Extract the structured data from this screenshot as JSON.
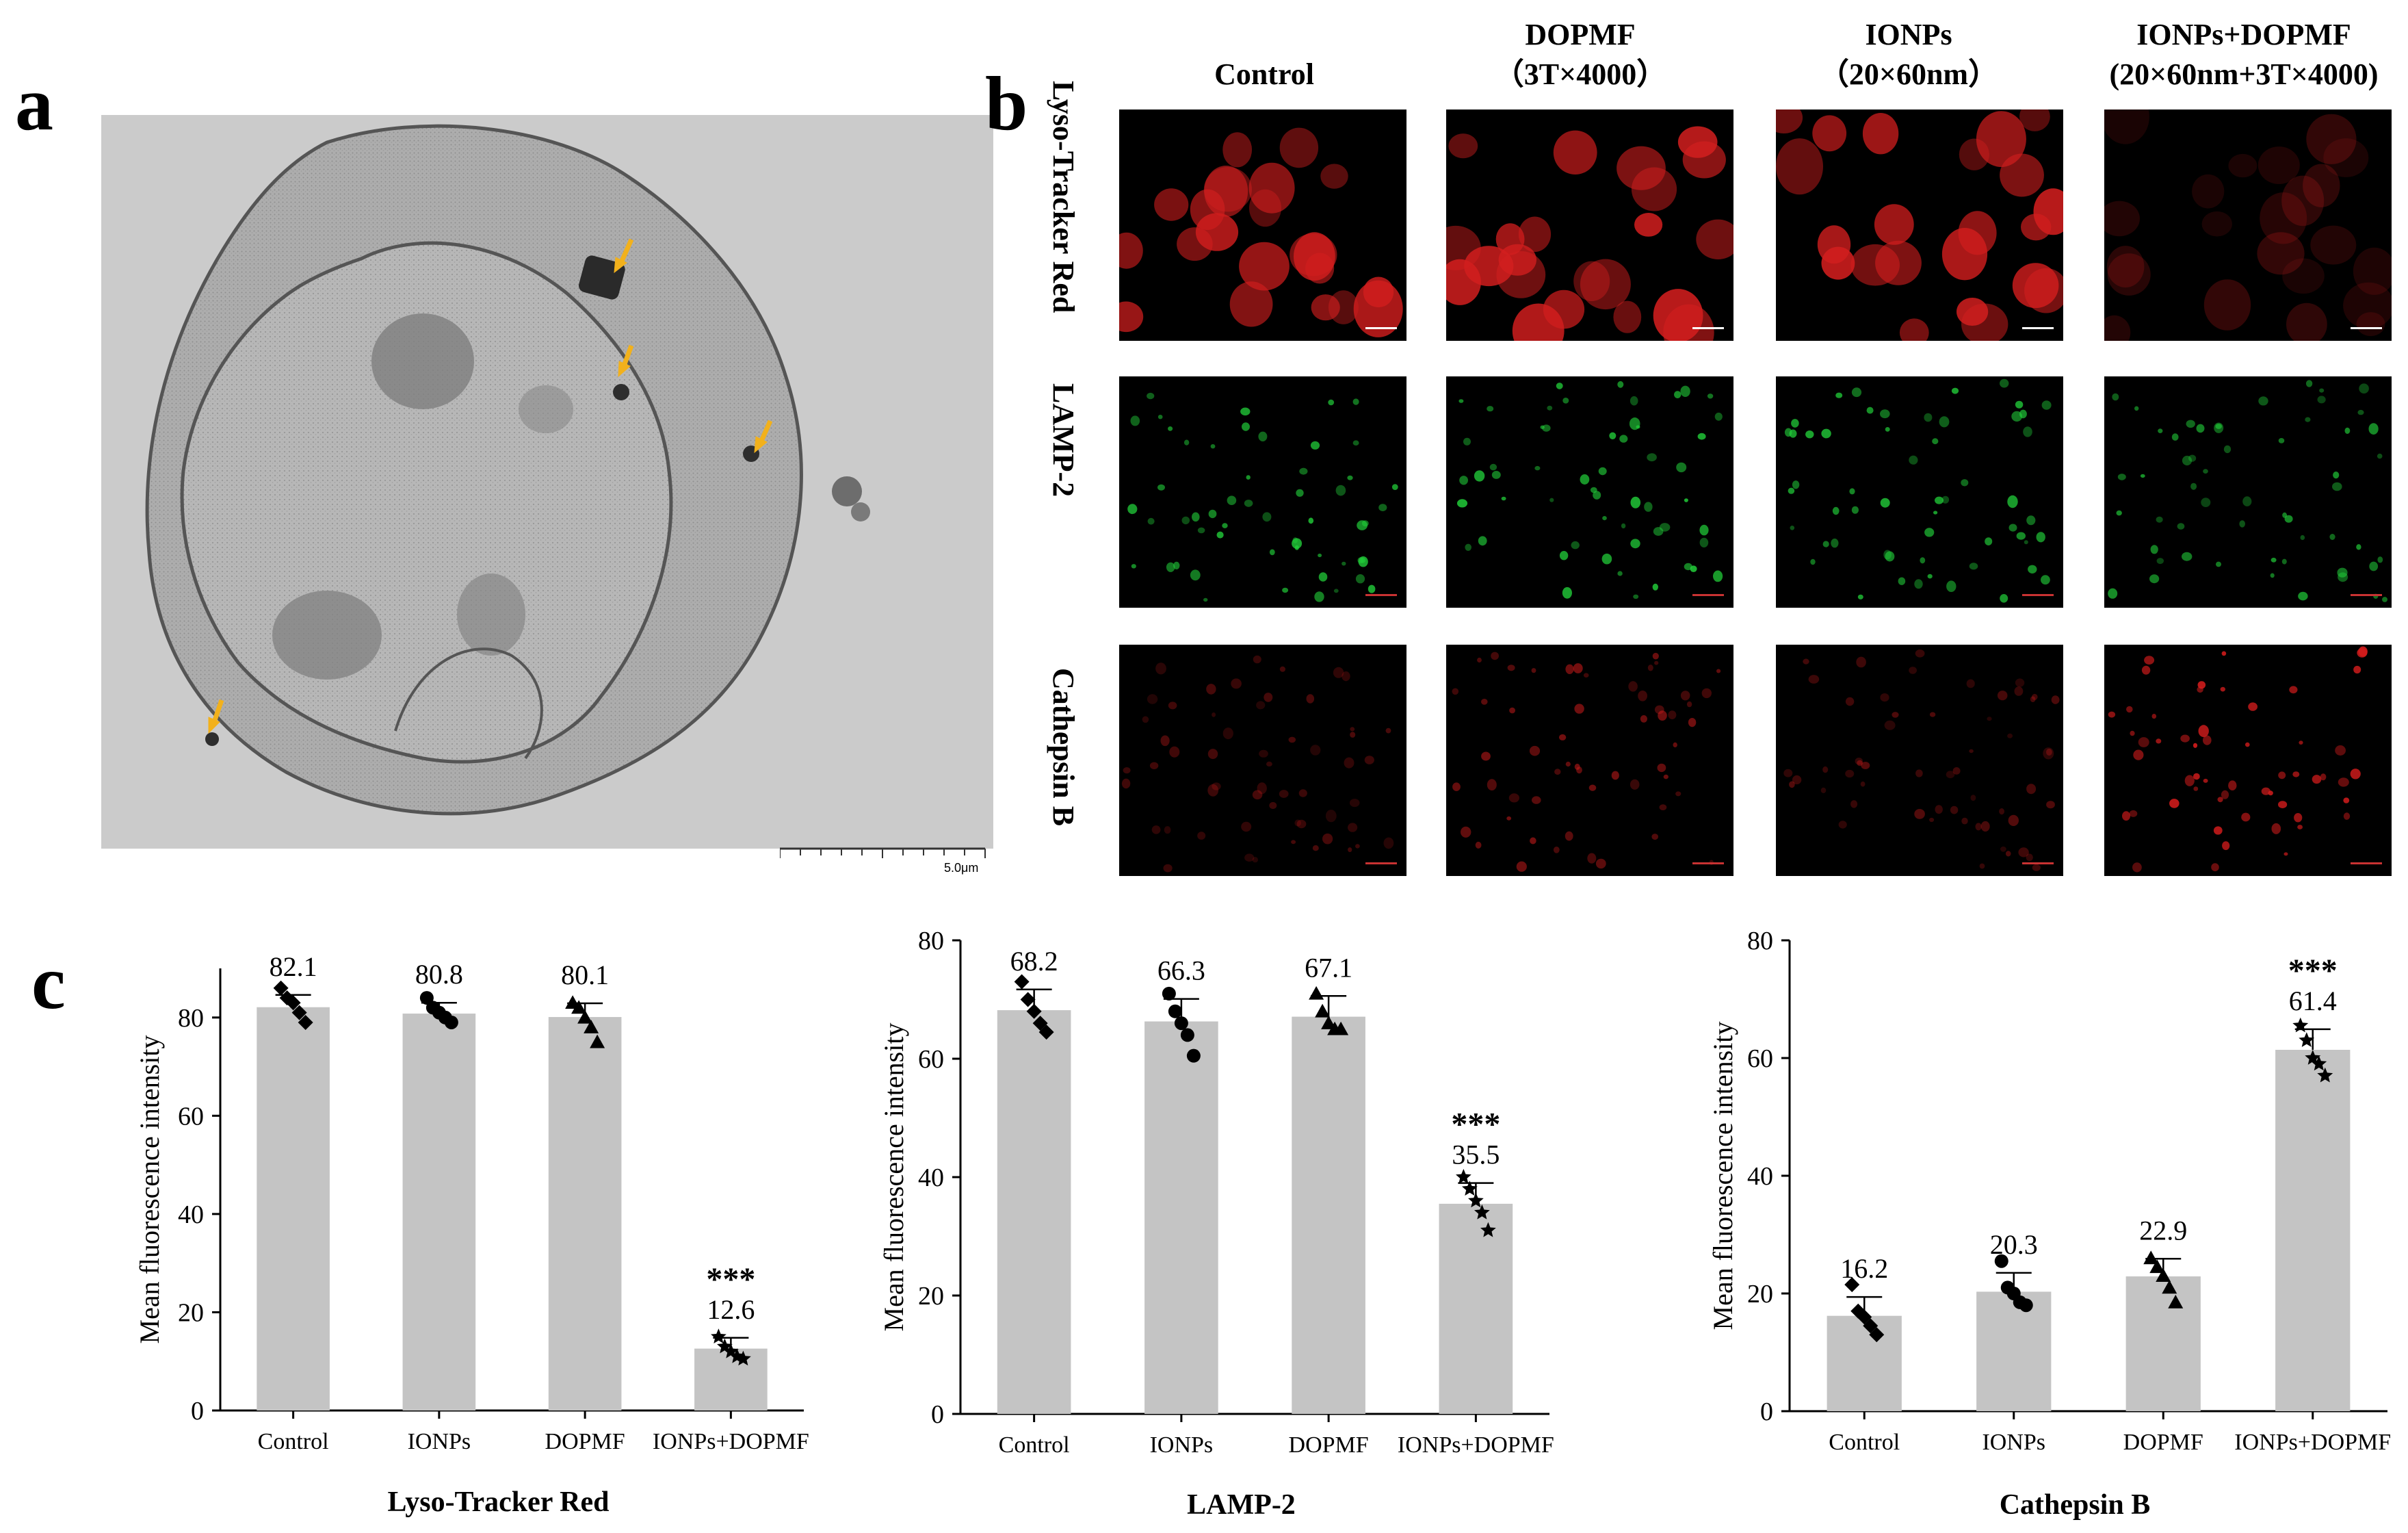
{
  "figure": {
    "panel_labels": [
      "a",
      "b",
      "c"
    ],
    "tem": {
      "scale_bar_label": "5.0μm",
      "colors": {
        "background": "#c9c9c9",
        "cytoplasm": "#a8a8a8",
        "nucleus": "#b4b4b4",
        "arrow": "#f2b11c"
      }
    },
    "microscopy": {
      "columns": [
        {
          "line1": "Control",
          "line2": ""
        },
        {
          "line1": "DOPMF",
          "line2": "（3T×4000）"
        },
        {
          "line1": "IONPs",
          "line2": "（20×60nm）"
        },
        {
          "line1": "IONPs+DOPMF",
          "line2": "(20×60nm+3T×4000)"
        }
      ],
      "rows": [
        {
          "label": "Lyso-Tracker Red",
          "color": "#d21e1e",
          "intensity": [
            0.85,
            0.9,
            0.88,
            0.25
          ]
        },
        {
          "label": "LAMP-2",
          "color": "#22d03a",
          "intensity": [
            0.8,
            0.85,
            0.8,
            0.7
          ]
        },
        {
          "label": "Cathepsin B",
          "color": "#d41c1c",
          "intensity": [
            0.35,
            0.55,
            0.4,
            0.9
          ]
        }
      ]
    }
  },
  "chart_data": [
    {
      "type": "bar",
      "title": "Lyso-Tracker Red",
      "ylabel": "Mean fluorescence intensity",
      "categories": [
        "Control",
        "IONPs",
        "DOPMF",
        "IONPs+DOPMF"
      ],
      "values": [
        82.1,
        80.8,
        80.1,
        12.6
      ],
      "value_labels": [
        "82.1",
        "80.8",
        "80.1",
        "12.6"
      ],
      "significance": [
        "",
        "",
        "",
        "***"
      ],
      "errors": [
        2.5,
        2.2,
        2.8,
        2.2
      ],
      "points": [
        [
          86,
          84,
          83,
          81,
          79
        ],
        [
          84,
          82,
          81,
          80,
          79
        ],
        [
          83,
          82,
          80,
          78,
          75
        ],
        [
          15,
          13,
          12,
          11,
          10.5
        ]
      ],
      "markers": [
        "diamond",
        "circle",
        "triangle",
        "star"
      ],
      "ylim": [
        0,
        90
      ],
      "yticks": [
        0,
        20,
        40,
        60,
        80
      ],
      "bar_color": "#c4c4c4"
    },
    {
      "type": "bar",
      "title": "LAMP-2",
      "ylabel": "Mean fluorescence intensity",
      "categories": [
        "Control",
        "IONPs",
        "DOPMF",
        "IONPs+DOPMF"
      ],
      "values": [
        68.2,
        66.3,
        67.1,
        35.5
      ],
      "value_labels": [
        "68.2",
        "66.3",
        "67.1",
        "35.5"
      ],
      "significance": [
        "",
        "",
        "",
        "***"
      ],
      "errors": [
        3.5,
        3.8,
        3.5,
        3.5
      ],
      "points": [
        [
          73,
          70,
          68,
          66,
          64.5
        ],
        [
          71,
          68,
          66,
          64,
          60.5
        ],
        [
          71,
          68,
          66,
          65,
          65
        ],
        [
          40,
          38,
          36,
          34,
          31
        ]
      ],
      "markers": [
        "diamond",
        "circle",
        "triangle",
        "star"
      ],
      "ylim": [
        0,
        80
      ],
      "yticks": [
        0,
        20,
        40,
        60,
        80
      ],
      "bar_color": "#c4c4c4"
    },
    {
      "type": "bar",
      "title": "Cathepsin B",
      "ylabel": "Mean fluorescence intensity",
      "categories": [
        "Control",
        "IONPs",
        "DOPMF",
        "IONPs+DOPMF"
      ],
      "values": [
        16.2,
        20.3,
        22.9,
        61.4
      ],
      "value_labels": [
        "16.2",
        "20.3",
        "22.9",
        "61.4"
      ],
      "significance": [
        "",
        "",
        "",
        "***"
      ],
      "errors": [
        3.2,
        3.2,
        3.0,
        3.5
      ],
      "points": [
        [
          21.5,
          17,
          16,
          14.5,
          13
        ],
        [
          25.5,
          21,
          20,
          18.5,
          18
        ],
        [
          26,
          24.5,
          23,
          21,
          18.5
        ],
        [
          65.5,
          63,
          60,
          59,
          57
        ]
      ],
      "markers": [
        "diamond",
        "circle",
        "triangle",
        "star"
      ],
      "ylim": [
        0,
        80
      ],
      "yticks": [
        0,
        20,
        40,
        60,
        80
      ],
      "bar_color": "#c4c4c4"
    }
  ]
}
